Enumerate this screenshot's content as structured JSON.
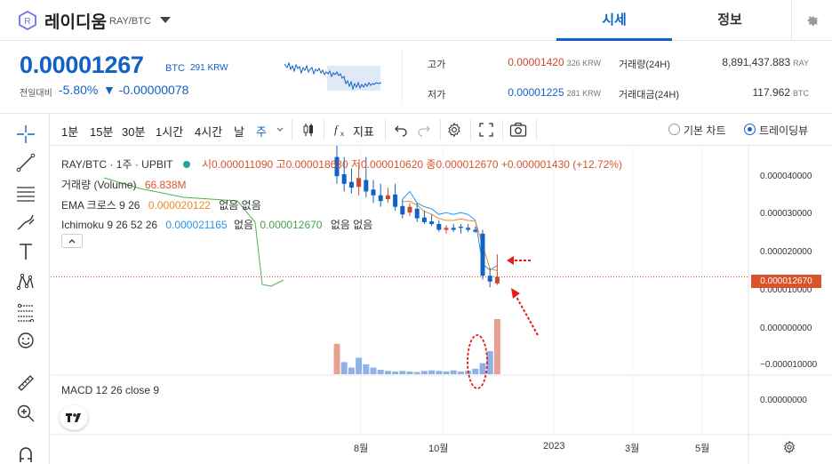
{
  "header": {
    "coin_name": "레이디움",
    "coin_pair": "RAY/BTC",
    "tabs": [
      {
        "label": "시세"
      },
      {
        "label": "정보"
      }
    ]
  },
  "price": {
    "current": "0.00001267",
    "unit": "BTC",
    "krw": "291 KRW",
    "change_label": "전일대비",
    "change_pct": "-5.80%",
    "change_abs": "▼ -0.00000078",
    "color_down": "#1261c4",
    "color_up": "#c84a31"
  },
  "stats": {
    "high_label": "고가",
    "high_value": "0.00001420",
    "high_krw": "326 KRW",
    "low_label": "저가",
    "low_value": "0.00001225",
    "low_krw": "281 KRW",
    "volume_label": "거래량(24H)",
    "volume_value": "8,891,437.883",
    "volume_unit": "RAY",
    "trade_value_label": "거래대금(24H)",
    "trade_value_value": "117.962",
    "trade_value_unit": "BTC"
  },
  "toolbar": {
    "timeframes": [
      "1분",
      "15분",
      "30분",
      "1시간",
      "4시간",
      "날",
      "주"
    ],
    "indicator_label": "지표",
    "chart_modes": [
      {
        "label": "기본 차트",
        "selected": false
      },
      {
        "label": "트레이딩뷰",
        "selected": true
      }
    ]
  },
  "legend": {
    "symbol": "RAY/BTC · 1주 · UPBIT",
    "ohlc": "시0.000011090  고0.000018630  저0.000010620  종0.000012670  +0.000001430 (+12.72%)",
    "volume_label": "거래량 (Volume)",
    "volume_value": "66.838M",
    "ema_label": "EMA 크로스 9 26",
    "ema_value": "0.000020122",
    "ema_tail": "없음  없음",
    "ichimoku_label": "Ichimoku 9 26 52 26",
    "ichimoku_value1": "0.000021165",
    "ichimoku_mid": "없음",
    "ichimoku_value2": "0.000012670",
    "ichimoku_tail": "없음  없음",
    "macd_label": "MACD 12 26 close 9"
  },
  "axes": {
    "price_ticks": [
      "0.000040000",
      "0.000030000",
      "0.000020000",
      "0.000010000",
      "0.000000000",
      "−0.000010000"
    ],
    "macd_tick": "0.00000000",
    "last_price_tag": "0.000012670",
    "x_ticks": [
      "8월",
      "10월",
      "2023",
      "3월",
      "5월"
    ]
  },
  "chart_data": {
    "type": "candlestick",
    "interval": "1주",
    "y_unit": "BTC",
    "ylim": [
      -1.2e-05,
      4.6e-05
    ],
    "candles": [
      {
        "o": 4.4e-05,
        "h": 4.7e-05,
        "l": 3.7e-05,
        "c": 3.9e-05
      },
      {
        "o": 3.95e-05,
        "h": 4.4e-05,
        "l": 3.5e-05,
        "c": 3.7e-05
      },
      {
        "o": 3.75e-05,
        "h": 4.1e-05,
        "l": 3.45e-05,
        "c": 3.6e-05
      },
      {
        "o": 3.62e-05,
        "h": 4.2e-05,
        "l": 3.4e-05,
        "c": 3.85e-05
      },
      {
        "o": 3.8e-05,
        "h": 4.4e-05,
        "l": 3.35e-05,
        "c": 3.5e-05
      },
      {
        "o": 3.55e-05,
        "h": 3.8e-05,
        "l": 3.2e-05,
        "c": 3.4e-05
      },
      {
        "o": 3.4e-05,
        "h": 3.7e-05,
        "l": 3.1e-05,
        "c": 3.25e-05
      },
      {
        "o": 3.3e-05,
        "h": 3.6e-05,
        "l": 3.2e-05,
        "c": 3.4e-05
      },
      {
        "o": 3.42e-05,
        "h": 3.7e-05,
        "l": 3e-05,
        "c": 3.1e-05
      },
      {
        "o": 3.12e-05,
        "h": 3.3e-05,
        "l": 2.8e-05,
        "c": 2.9e-05
      },
      {
        "o": 2.95e-05,
        "h": 3.2e-05,
        "l": 2.85e-05,
        "c": 3.1e-05
      },
      {
        "o": 3.05e-05,
        "h": 3.2e-05,
        "l": 2.7e-05,
        "c": 2.8e-05
      },
      {
        "o": 2.82e-05,
        "h": 3e-05,
        "l": 2.65e-05,
        "c": 2.7e-05
      },
      {
        "o": 2.72e-05,
        "h": 2.9e-05,
        "l": 2.6e-05,
        "c": 2.65e-05
      },
      {
        "o": 2.65e-05,
        "h": 2.75e-05,
        "l": 2.45e-05,
        "c": 2.5e-05
      },
      {
        "o": 2.5e-05,
        "h": 2.62e-05,
        "l": 2.4e-05,
        "c": 2.55e-05
      },
      {
        "o": 2.55e-05,
        "h": 2.65e-05,
        "l": 2.45e-05,
        "c": 2.5e-05
      },
      {
        "o": 2.58e-05,
        "h": 2.65e-05,
        "l": 2.4e-05,
        "c": 2.55e-05
      },
      {
        "o": 2.55e-05,
        "h": 2.65e-05,
        "l": 2.45e-05,
        "c": 2.5e-05
      },
      {
        "o": 2.5e-05,
        "h": 2.58e-05,
        "l": 2.42e-05,
        "c": 2.45e-05
      },
      {
        "o": 2.4e-05,
        "h": 2.5e-05,
        "l": 1.2e-05,
        "c": 1.3e-05
      },
      {
        "o": 1.3e-05,
        "h": 1.5e-05,
        "l": 1e-05,
        "c": 1.15e-05
      },
      {
        "o": 1.1e-05,
        "h": 1.86e-05,
        "l": 1.06e-05,
        "c": 1.27e-05
      }
    ],
    "volume": [
      {
        "v": 0.55,
        "up": true
      },
      {
        "v": 0.22,
        "up": false
      },
      {
        "v": 0.12,
        "up": false
      },
      {
        "v": 0.3,
        "up": false
      },
      {
        "v": 0.18,
        "up": false
      },
      {
        "v": 0.12,
        "up": false
      },
      {
        "v": 0.08,
        "up": false
      },
      {
        "v": 0.06,
        "up": false
      },
      {
        "v": 0.05,
        "up": false
      },
      {
        "v": 0.06,
        "up": false
      },
      {
        "v": 0.05,
        "up": false
      },
      {
        "v": 0.04,
        "up": false
      },
      {
        "v": 0.06,
        "up": false
      },
      {
        "v": 0.07,
        "up": false
      },
      {
        "v": 0.06,
        "up": false
      },
      {
        "v": 0.05,
        "up": false
      },
      {
        "v": 0.07,
        "up": false
      },
      {
        "v": 0.05,
        "up": false
      },
      {
        "v": 0.06,
        "up": false
      },
      {
        "v": 0.1,
        "up": false
      },
      {
        "v": 0.2,
        "up": false
      },
      {
        "v": 0.42,
        "up": false
      },
      {
        "v": 1.0,
        "up": true
      }
    ]
  }
}
